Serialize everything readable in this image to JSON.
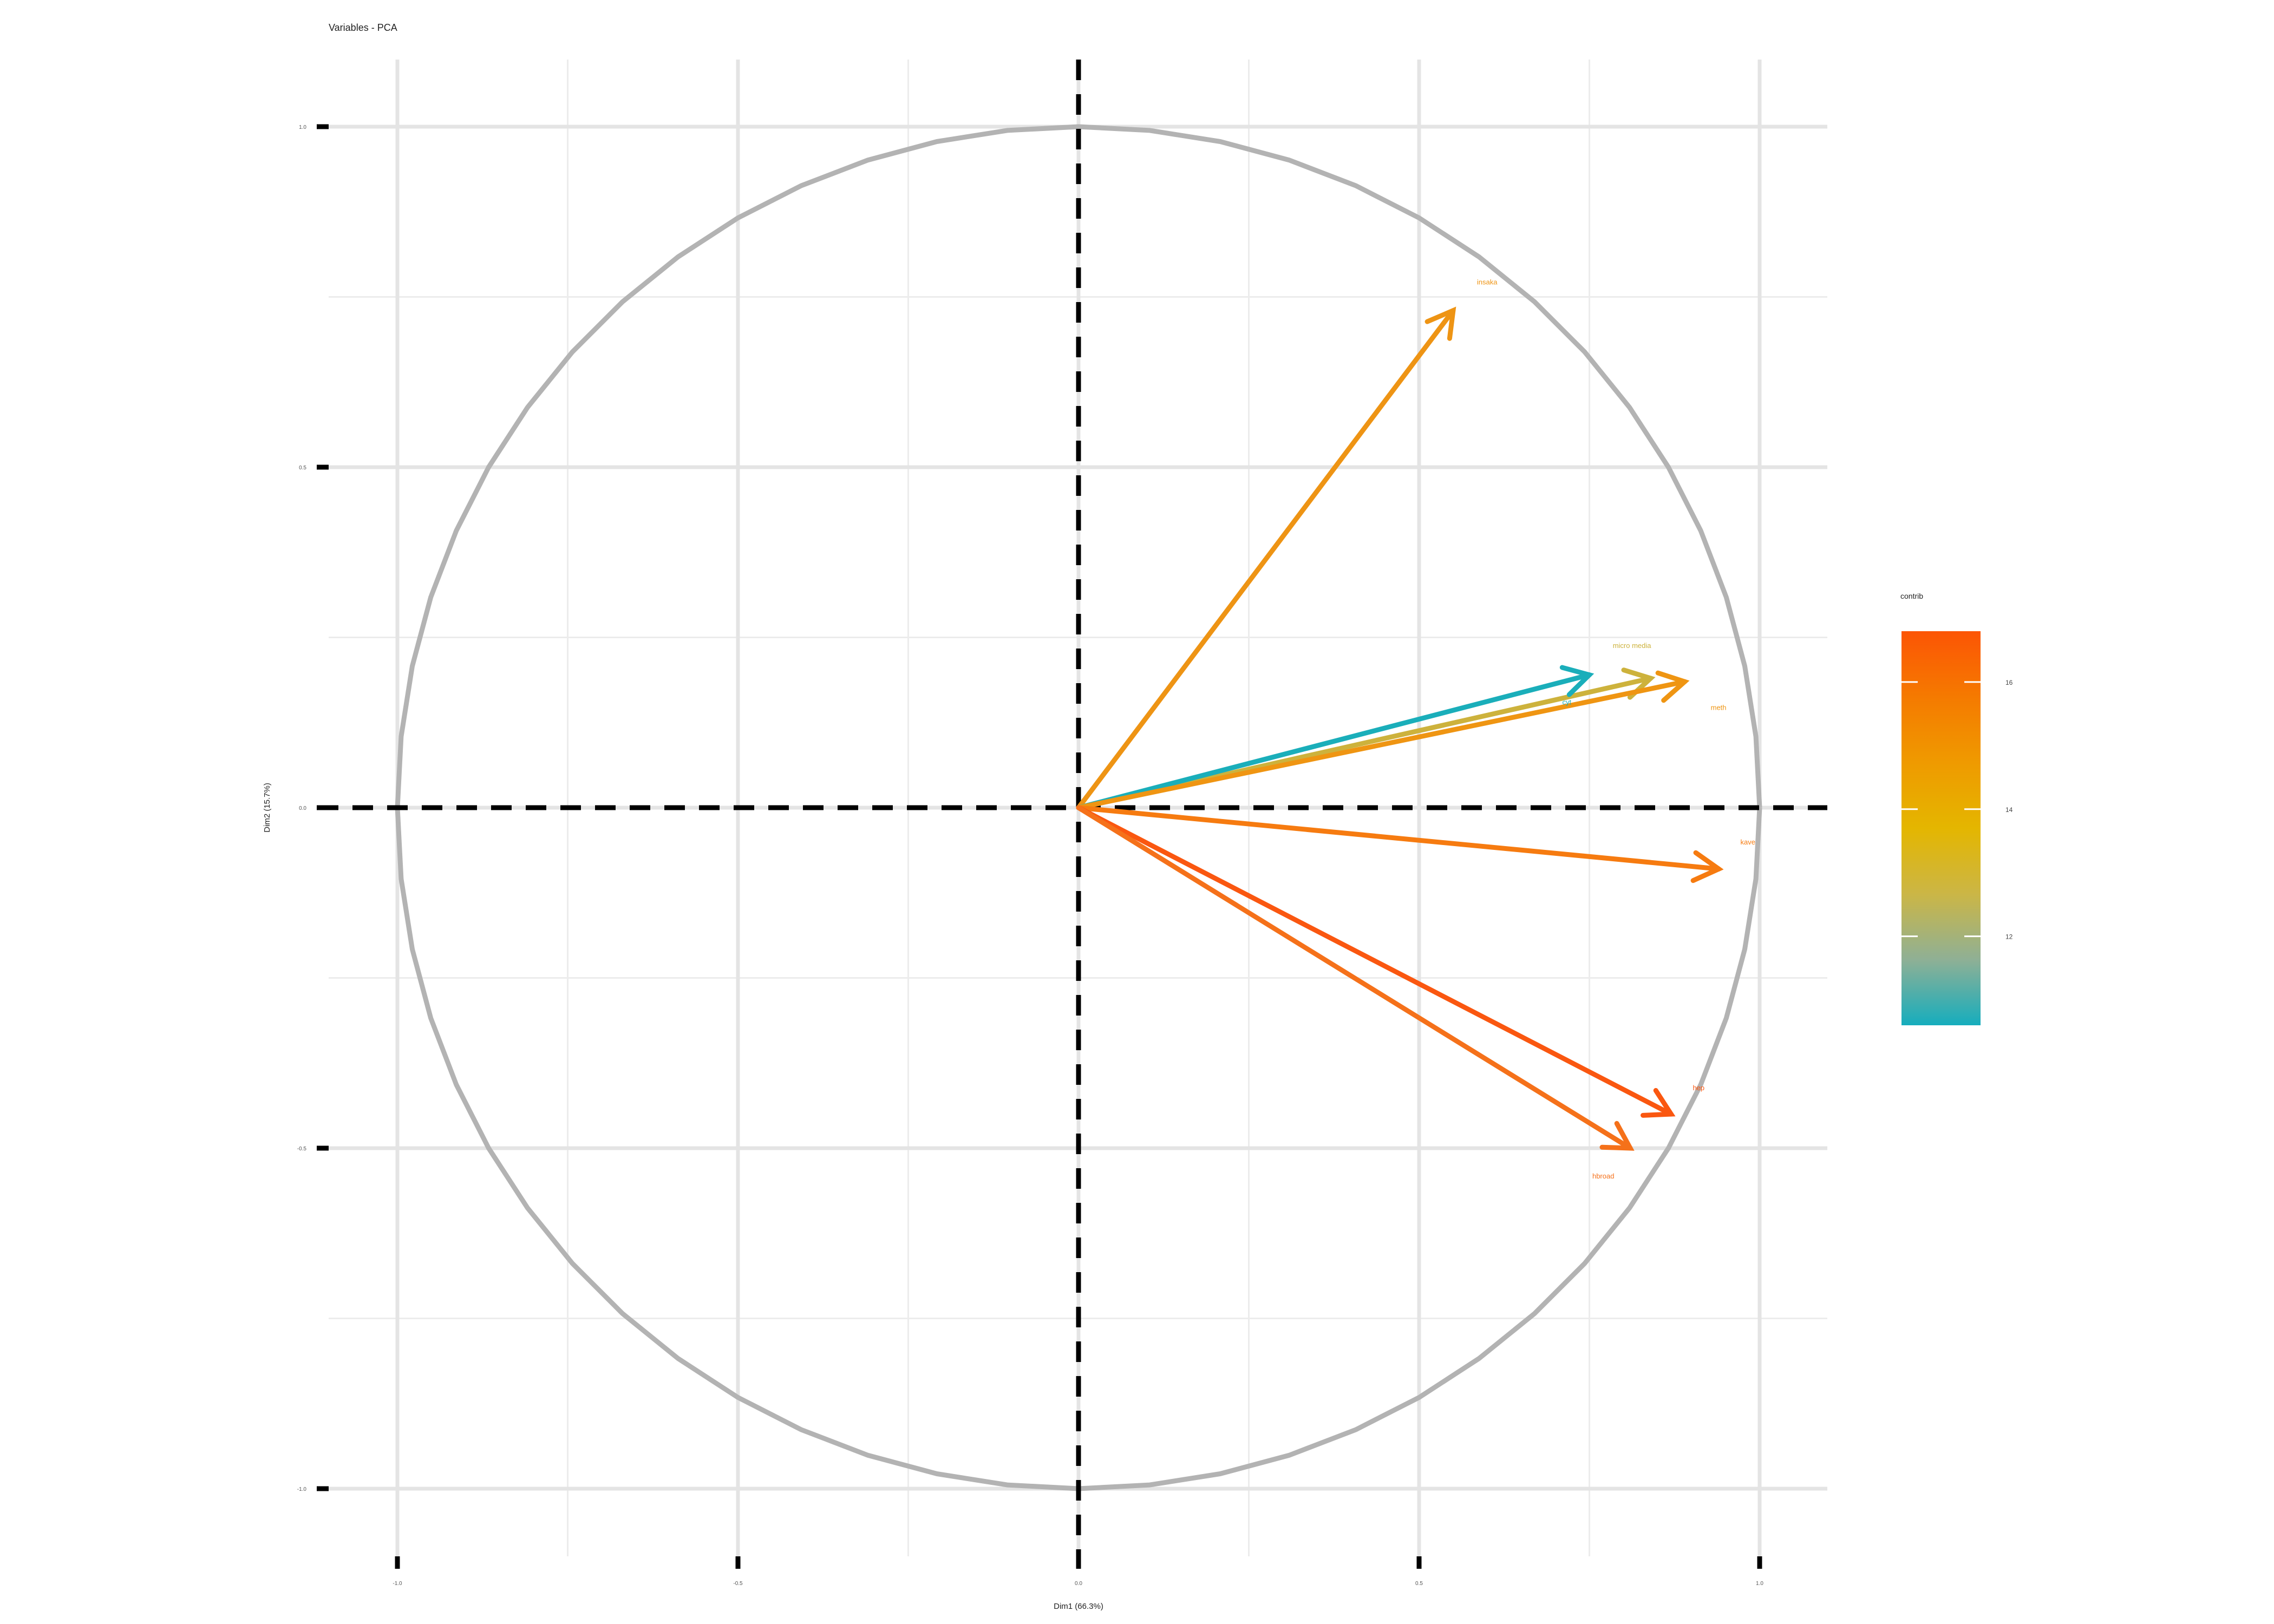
{
  "chart_data": {
    "type": "scatter",
    "title": "Variables - PCA",
    "xlabel": "Dim1 (66.3%)",
    "ylabel": "Dim2 (15.7%)",
    "xlim": [
      -1.1,
      1.1
    ],
    "ylim": [
      -1.08,
      1.08
    ],
    "x_ticks": [
      "-1.0",
      "-0.5",
      "0.0",
      "0.5",
      "1.0"
    ],
    "y_ticks": [
      "-1.0",
      "-0.5",
      "0.0",
      "0.5",
      "1.0"
    ],
    "grid": true,
    "correlation_circle": true,
    "variables": [
      {
        "label": "insaka",
        "x": 0.55,
        "y": 0.73,
        "contrib": 14.7,
        "color": "#ee9414"
      },
      {
        "label": "micro media",
        "x": 0.84,
        "y": 0.19,
        "contrib": 12.8,
        "color": "#cdb23c"
      },
      {
        "label": "cyt",
        "x": 0.75,
        "y": 0.195,
        "contrib": 10.7,
        "color": "#1aaeba"
      },
      {
        "label": "meth",
        "x": 0.89,
        "y": 0.185,
        "contrib": 14.5,
        "color": "#ef9512"
      },
      {
        "label": "kave",
        "x": 0.94,
        "y": -0.09,
        "contrib": 15.7,
        "color": "#f67b10"
      },
      {
        "label": "hep",
        "x": 0.87,
        "y": -0.45,
        "contrib": 16.6,
        "color": "#fa5710"
      },
      {
        "label": "hbroad",
        "x": 0.81,
        "y": -0.5,
        "contrib": 15.8,
        "color": "#f5711a"
      }
    ],
    "legend": {
      "title": "contrib",
      "position": "right",
      "ticks": [
        "12",
        "14",
        "16"
      ],
      "tick_values": [
        12,
        14,
        16
      ],
      "min": 10.6,
      "max": 16.8,
      "gradient": [
        "#16adbd",
        "#8fb095",
        "#cbb646",
        "#e4b600",
        "#ef9a00",
        "#f57a00",
        "#fc5505"
      ]
    }
  }
}
